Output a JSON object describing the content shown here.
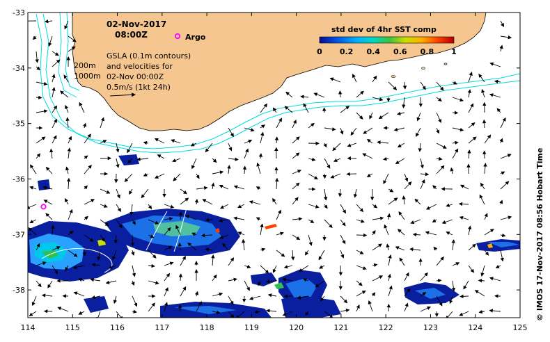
{
  "header": {
    "date": "02-Nov-2017",
    "time": "08:00Z"
  },
  "legend": {
    "argo_label": "Argo",
    "gsla_lines": [
      "GSLA (0.1m contours)",
      "and velocities for",
      "02-Nov 00:00Z",
      "0.5m/s (1kt 24h)"
    ],
    "isobath_200": "200m",
    "isobath_1000": "1000m"
  },
  "colorbar": {
    "title": "std dev of 4hr SST comp",
    "ticks": [
      "0",
      "0.2",
      "0.4",
      "0.6",
      "0.8",
      "1"
    ],
    "colors": [
      "#0c0c8a",
      "#0050e0",
      "#00b0ff",
      "#00d8c0",
      "#40c040",
      "#c8e000",
      "#ffb000",
      "#ff4000",
      "#b00000"
    ]
  },
  "axes": {
    "x_ticks": [
      "114",
      "115",
      "116",
      "117",
      "118",
      "119",
      "120",
      "121",
      "122",
      "123",
      "124",
      "125"
    ],
    "y_ticks": [
      "-33",
      "-34",
      "-35",
      "-36",
      "-37",
      "-38"
    ],
    "x_range": [
      114,
      125
    ],
    "y_range": [
      -38.5,
      -33
    ]
  },
  "credit": "© IMOS 17-Nov-2017 08:56 Hobart Time",
  "colors": {
    "land": "#f6c690",
    "isobath": "#00dcdc",
    "argo": "#ff00ff"
  },
  "argo_float": {
    "lon": 114.35,
    "lat": -36.5
  }
}
